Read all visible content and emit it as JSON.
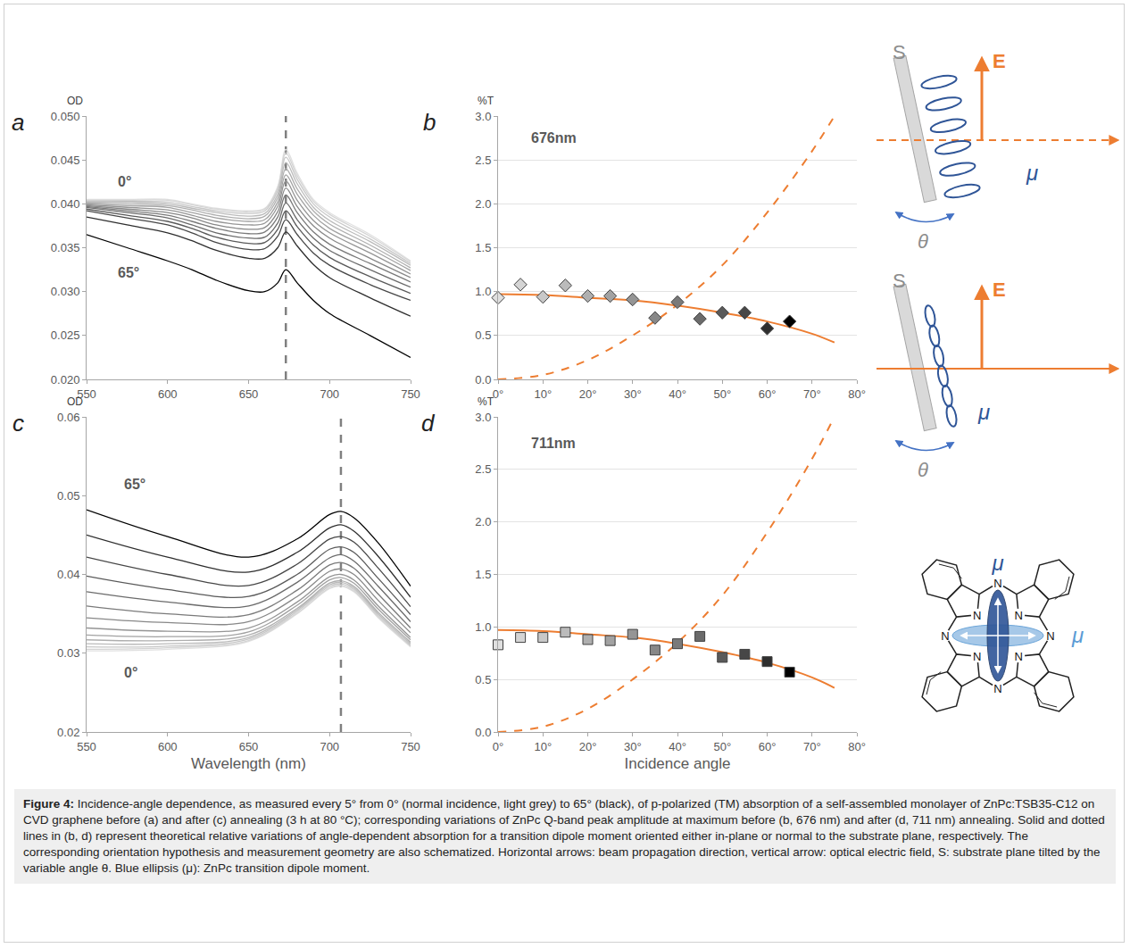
{
  "chart_data": [
    {
      "panel": "a",
      "type": "line",
      "ylabel": "OD",
      "xlim": [
        550,
        750
      ],
      "xticks": [
        550,
        600,
        650,
        700,
        750
      ],
      "ylim": [
        0.02,
        0.05
      ],
      "yticks": [
        {
          "value": 0.02,
          "label": "0.020"
        },
        {
          "value": 0.025,
          "label": "0.025"
        },
        {
          "value": 0.03,
          "label": "0.030"
        },
        {
          "value": 0.035,
          "label": "0.035"
        },
        {
          "value": 0.04,
          "label": "0.040"
        },
        {
          "value": 0.045,
          "label": "0.045"
        },
        {
          "value": 0.05,
          "label": "0.050"
        }
      ],
      "grid": false,
      "vline_x": 673,
      "annotations": [
        {
          "text": "0°",
          "x": 568,
          "y": 0.0425
        },
        {
          "text": "65°",
          "x": 568,
          "y": 0.0322
        }
      ],
      "x": [
        550,
        575,
        600,
        615,
        630,
        650,
        660,
        668,
        673,
        680,
        690,
        700,
        725,
        750
      ],
      "series": [
        {
          "color": "#e0e0e0",
          "values": [
            0.0405,
            0.0405,
            0.0405,
            0.04,
            0.0395,
            0.0392,
            0.0395,
            0.042,
            0.0462,
            0.0435,
            0.0405,
            0.039,
            0.0365,
            0.0335
          ]
        },
        {
          "color": "#d4d4d4",
          "values": [
            0.0404,
            0.0404,
            0.0404,
            0.0399,
            0.0394,
            0.0391,
            0.0394,
            0.0418,
            0.0458,
            0.0432,
            0.0403,
            0.0388,
            0.0363,
            0.0334
          ]
        },
        {
          "color": "#c8c8c8",
          "values": [
            0.0403,
            0.0403,
            0.0402,
            0.0397,
            0.0392,
            0.0389,
            0.0392,
            0.0415,
            0.0453,
            0.0428,
            0.04,
            0.0385,
            0.036,
            0.0332
          ]
        },
        {
          "color": "#bbbbbb",
          "values": [
            0.0402,
            0.0402,
            0.04,
            0.0395,
            0.039,
            0.0386,
            0.0389,
            0.0411,
            0.0447,
            0.0423,
            0.0396,
            0.0381,
            0.0357,
            0.033
          ]
        },
        {
          "color": "#afafaf",
          "values": [
            0.0401,
            0.04,
            0.0398,
            0.0393,
            0.0387,
            0.0383,
            0.0386,
            0.0407,
            0.044,
            0.0417,
            0.0392,
            0.0377,
            0.0353,
            0.0327
          ]
        },
        {
          "color": "#a2a2a2",
          "values": [
            0.04,
            0.0398,
            0.0396,
            0.039,
            0.0384,
            0.038,
            0.0382,
            0.0402,
            0.0433,
            0.0411,
            0.0387,
            0.0372,
            0.0349,
            0.0324
          ]
        },
        {
          "color": "#959595",
          "values": [
            0.0399,
            0.0396,
            0.0393,
            0.0387,
            0.038,
            0.0376,
            0.0378,
            0.0397,
            0.0426,
            0.0404,
            0.0381,
            0.0367,
            0.0344,
            0.032
          ]
        },
        {
          "color": "#888888",
          "values": [
            0.0398,
            0.0394,
            0.039,
            0.0384,
            0.0376,
            0.0371,
            0.0373,
            0.0391,
            0.0418,
            0.0397,
            0.0375,
            0.0361,
            0.0338,
            0.0316
          ]
        },
        {
          "color": "#7a7a7a",
          "values": [
            0.0397,
            0.0392,
            0.0387,
            0.038,
            0.0372,
            0.0366,
            0.0368,
            0.0385,
            0.041,
            0.039,
            0.0368,
            0.0354,
            0.0332,
            0.0311
          ]
        },
        {
          "color": "#6b6b6b",
          "values": [
            0.0396,
            0.039,
            0.0384,
            0.0376,
            0.0367,
            0.0361,
            0.0362,
            0.0378,
            0.0401,
            0.0382,
            0.0361,
            0.0347,
            0.0325,
            0.0305
          ]
        },
        {
          "color": "#5a5a5a",
          "values": [
            0.0394,
            0.0387,
            0.038,
            0.0372,
            0.0362,
            0.0355,
            0.0356,
            0.0371,
            0.0392,
            0.0374,
            0.0353,
            0.0339,
            0.0317,
            0.0298
          ]
        },
        {
          "color": "#474747",
          "values": [
            0.0392,
            0.0384,
            0.0376,
            0.0367,
            0.0356,
            0.0348,
            0.0349,
            0.0363,
            0.0382,
            0.0365,
            0.0344,
            0.033,
            0.0308,
            0.029
          ]
        },
        {
          "color": "#2e2e2e",
          "values": [
            0.0385,
            0.0376,
            0.0367,
            0.0358,
            0.0347,
            0.0338,
            0.0338,
            0.035,
            0.0368,
            0.0352,
            0.0331,
            0.0316,
            0.0293,
            0.0272
          ]
        },
        {
          "color": "#000000",
          "values": [
            0.0365,
            0.035,
            0.0335,
            0.0325,
            0.0313,
            0.0301,
            0.03,
            0.031,
            0.0325,
            0.031,
            0.029,
            0.0275,
            0.025,
            0.0225
          ]
        }
      ]
    },
    {
      "panel": "b",
      "type": "scatter",
      "ylabel": "%T",
      "xlim": [
        0,
        80
      ],
      "xticks": [
        {
          "value": 0,
          "label": "0°"
        },
        {
          "value": 10,
          "label": "10°"
        },
        {
          "value": 20,
          "label": "20°"
        },
        {
          "value": 30,
          "label": "30°"
        },
        {
          "value": 40,
          "label": "40°"
        },
        {
          "value": 50,
          "label": "50°"
        },
        {
          "value": 60,
          "label": "60°"
        },
        {
          "value": 70,
          "label": "70°"
        },
        {
          "value": 80,
          "label": "80°"
        }
      ],
      "ylim": [
        0,
        3
      ],
      "yticks": [
        {
          "value": 0,
          "label": "0.0"
        },
        {
          "value": 0.5,
          "label": "0.5"
        },
        {
          "value": 1,
          "label": "1.0"
        },
        {
          "value": 1.5,
          "label": "1.5"
        },
        {
          "value": 2,
          "label": "2.0"
        },
        {
          "value": 2.5,
          "label": "2.5"
        },
        {
          "value": 3,
          "label": "3.0"
        }
      ],
      "grid": true,
      "annotations": [
        {
          "text": "676nm",
          "x": 7,
          "y": 2.75
        }
      ],
      "series": [
        {
          "type": "line",
          "line_style": "solid",
          "color": "#ed7d31",
          "x": [
            0,
            10,
            20,
            30,
            40,
            50,
            60,
            70,
            75
          ],
          "values": [
            0.97,
            0.96,
            0.93,
            0.9,
            0.84,
            0.76,
            0.66,
            0.52,
            0.42
          ]
        },
        {
          "type": "line",
          "line_style": "dashed",
          "color": "#ed7d31",
          "x": [
            0,
            10,
            20,
            30,
            40,
            50,
            60,
            70,
            75
          ],
          "values": [
            0.0,
            0.05,
            0.22,
            0.5,
            0.85,
            1.3,
            1.9,
            2.6,
            3.0
          ]
        },
        {
          "marker": "diamond",
          "x": [
            0,
            5,
            10,
            15,
            20,
            25,
            30,
            35,
            40,
            45,
            50,
            55,
            60,
            65
          ],
          "colors": [
            "#e0e0e0",
            "#d4d4d4",
            "#c8c8c8",
            "#bbbbbb",
            "#afafaf",
            "#a2a2a2",
            "#959595",
            "#888888",
            "#7a7a7a",
            "#6b6b6b",
            "#5a5a5a",
            "#474747",
            "#2e2e2e",
            "#000000"
          ],
          "values": [
            0.93,
            1.08,
            0.94,
            1.07,
            0.95,
            0.95,
            0.91,
            0.7,
            0.88,
            0.69,
            0.76,
            0.76,
            0.58,
            0.66
          ]
        }
      ]
    },
    {
      "panel": "c",
      "type": "line",
      "ylabel": "OD",
      "xlabel": "Wavelength (nm)",
      "xlim": [
        550,
        750
      ],
      "xticks": [
        550,
        600,
        650,
        700,
        750
      ],
      "ylim": [
        0.02,
        0.06
      ],
      "yticks": [
        {
          "value": 0.02,
          "label": "0.02"
        },
        {
          "value": 0.03,
          "label": "0.03"
        },
        {
          "value": 0.04,
          "label": "0.04"
        },
        {
          "value": 0.05,
          "label": "0.05"
        },
        {
          "value": 0.06,
          "label": "0.06"
        }
      ],
      "grid": false,
      "vline_x": 707,
      "annotations": [
        {
          "text": "65°",
          "x": 572,
          "y": 0.0515
        },
        {
          "text": "0°",
          "x": 572,
          "y": 0.0275
        }
      ],
      "x": [
        550,
        600,
        650,
        680,
        700,
        707,
        715,
        730,
        750
      ],
      "series": [
        {
          "color": "#e0e0e0",
          "values": [
            0.0303,
            0.0305,
            0.0315,
            0.035,
            0.0382,
            0.0385,
            0.0378,
            0.0345,
            0.0308
          ]
        },
        {
          "color": "#d4d4d4",
          "values": [
            0.0305,
            0.0307,
            0.0316,
            0.0351,
            0.0383,
            0.0386,
            0.0379,
            0.0346,
            0.0309
          ]
        },
        {
          "color": "#c8c8c8",
          "values": [
            0.0308,
            0.0309,
            0.0318,
            0.0353,
            0.0385,
            0.0388,
            0.0381,
            0.0348,
            0.031
          ]
        },
        {
          "color": "#bbbbbb",
          "values": [
            0.0312,
            0.0312,
            0.032,
            0.0355,
            0.0387,
            0.039,
            0.0383,
            0.035,
            0.0312
          ]
        },
        {
          "color": "#afafaf",
          "values": [
            0.0317,
            0.0316,
            0.0323,
            0.0357,
            0.0389,
            0.0392,
            0.0385,
            0.0352,
            0.0314
          ]
        },
        {
          "color": "#a2a2a2",
          "values": [
            0.0323,
            0.0321,
            0.0327,
            0.0361,
            0.0393,
            0.0396,
            0.0389,
            0.0356,
            0.0317
          ]
        },
        {
          "color": "#959595",
          "values": [
            0.0332,
            0.0328,
            0.0332,
            0.0365,
            0.0397,
            0.04,
            0.0393,
            0.036,
            0.032
          ]
        },
        {
          "color": "#888888",
          "values": [
            0.0345,
            0.0339,
            0.034,
            0.0372,
            0.0404,
            0.0407,
            0.04,
            0.0367,
            0.0326
          ]
        },
        {
          "color": "#7a7a7a",
          "values": [
            0.036,
            0.035,
            0.0349,
            0.038,
            0.0412,
            0.0415,
            0.0408,
            0.0375,
            0.0332
          ]
        },
        {
          "color": "#6b6b6b",
          "values": [
            0.0378,
            0.0365,
            0.036,
            0.039,
            0.0421,
            0.0425,
            0.0417,
            0.0385,
            0.034
          ]
        },
        {
          "color": "#5a5a5a",
          "values": [
            0.0398,
            0.0381,
            0.0372,
            0.04,
            0.0432,
            0.0435,
            0.0428,
            0.0395,
            0.0349
          ]
        },
        {
          "color": "#474747",
          "values": [
            0.0422,
            0.04,
            0.0386,
            0.0413,
            0.0445,
            0.0448,
            0.0441,
            0.0408,
            0.0359
          ]
        },
        {
          "color": "#2e2e2e",
          "values": [
            0.045,
            0.0422,
            0.0403,
            0.0428,
            0.0459,
            0.0463,
            0.0455,
            0.0423,
            0.0371
          ]
        },
        {
          "color": "#000000",
          "values": [
            0.0482,
            0.0448,
            0.0422,
            0.0445,
            0.0476,
            0.048,
            0.0472,
            0.044,
            0.0385
          ]
        }
      ]
    },
    {
      "panel": "d",
      "type": "scatter",
      "ylabel": "%T",
      "xlabel": "Incidence angle",
      "xlim": [
        0,
        80
      ],
      "xticks": [
        {
          "value": 0,
          "label": "0°"
        },
        {
          "value": 10,
          "label": "10°"
        },
        {
          "value": 20,
          "label": "20°"
        },
        {
          "value": 30,
          "label": "30°"
        },
        {
          "value": 40,
          "label": "40°"
        },
        {
          "value": 50,
          "label": "50°"
        },
        {
          "value": 60,
          "label": "60°"
        },
        {
          "value": 70,
          "label": "70°"
        },
        {
          "value": 80,
          "label": "80°"
        }
      ],
      "ylim": [
        0,
        3
      ],
      "yticks": [
        {
          "value": 0,
          "label": "0.0"
        },
        {
          "value": 0.5,
          "label": "0.5"
        },
        {
          "value": 1,
          "label": "1.0"
        },
        {
          "value": 1.5,
          "label": "1.5"
        },
        {
          "value": 2,
          "label": "2.0"
        },
        {
          "value": 2.5,
          "label": "2.5"
        },
        {
          "value": 3,
          "label": "3.0"
        }
      ],
      "grid": true,
      "annotations": [
        {
          "text": "711nm",
          "x": 7,
          "y": 2.75
        }
      ],
      "series": [
        {
          "type": "line",
          "line_style": "solid",
          "color": "#ed7d31",
          "x": [
            0,
            10,
            20,
            30,
            40,
            50,
            60,
            70,
            75
          ],
          "values": [
            0.97,
            0.96,
            0.93,
            0.9,
            0.84,
            0.76,
            0.66,
            0.52,
            0.42
          ]
        },
        {
          "type": "line",
          "line_style": "dashed",
          "color": "#ed7d31",
          "x": [
            0,
            10,
            20,
            30,
            40,
            50,
            60,
            70,
            75
          ],
          "values": [
            0.0,
            0.05,
            0.22,
            0.5,
            0.85,
            1.3,
            1.9,
            2.6,
            3.0
          ]
        },
        {
          "marker": "square",
          "x": [
            0,
            5,
            10,
            15,
            20,
            25,
            30,
            35,
            40,
            45,
            50,
            55,
            60,
            65
          ],
          "colors": [
            "#e0e0e0",
            "#d4d4d4",
            "#c8c8c8",
            "#bbbbbb",
            "#afafaf",
            "#a2a2a2",
            "#959595",
            "#888888",
            "#7a7a7a",
            "#6b6b6b",
            "#5a5a5a",
            "#474747",
            "#2e2e2e",
            "#000000"
          ],
          "values": [
            0.83,
            0.9,
            0.9,
            0.95,
            0.88,
            0.87,
            0.93,
            0.78,
            0.84,
            0.91,
            0.71,
            0.74,
            0.67,
            0.57
          ]
        }
      ]
    }
  ],
  "diagrams": {
    "substrate": "S",
    "field": "E",
    "angle": "θ",
    "dipole": "μ",
    "atom": "N"
  },
  "caption": {
    "label": "Figure 4:",
    "text": "Incidence-angle dependence, as measured every 5° from 0° (normal incidence, light grey) to 65° (black), of p-polarized (TM) absorption of a self-assembled monolayer of ZnPc:TSB35-C12 on CVD graphene before (a) and after (c) annealing (3 h at 80 °C); corresponding variations of ZnPc Q-band peak amplitude at maximum before (b, 676 nm) and after (d, 711 nm) annealing. Solid and dotted lines in (b, d) represent theoretical relative variations of angle-dependent absorption for a transition dipole moment oriented either in-plane or normal to the substrate plane, respectively. The corresponding orientation hypothesis and measurement geometry are also schematized. Horizontal arrows: beam propagation direction, vertical arrow: optical electric field, S: substrate plane tilted by the variable angle θ. Blue ellipsis (μ): ZnPc transition dipole moment."
  }
}
